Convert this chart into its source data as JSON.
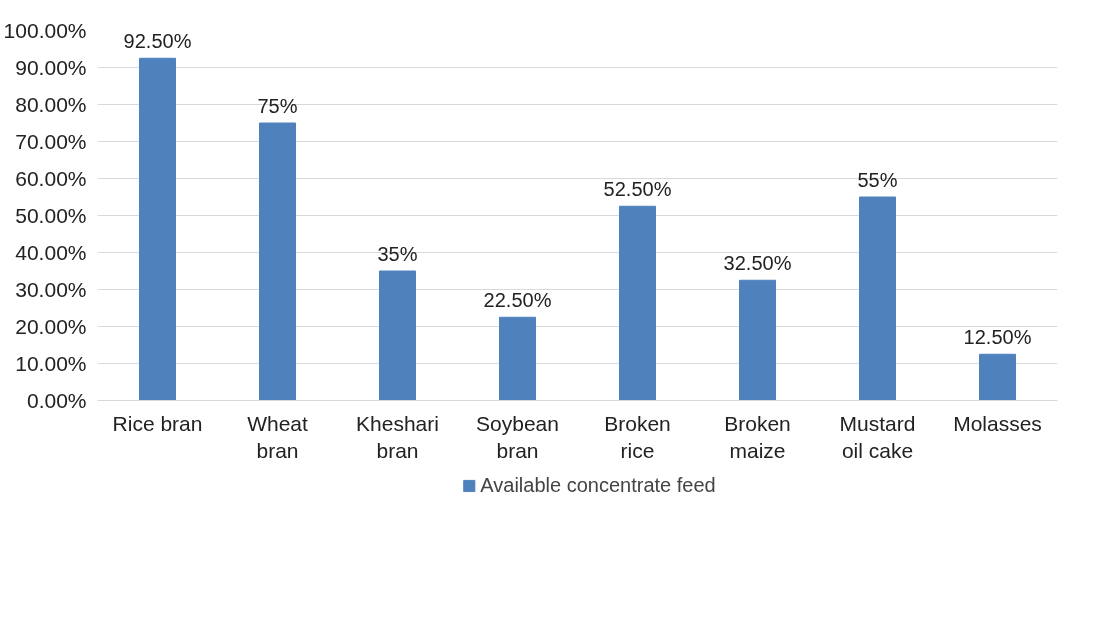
{
  "chart_data": {
    "type": "bar",
    "categories": [
      "Rice bran",
      "Wheat\nbran",
      "Kheshari\nbran",
      "Soybean\nbran",
      "Broken\nrice",
      "Broken\nmaize",
      "Mustard\noil cake",
      "Molasses"
    ],
    "series": [
      {
        "name": "Available concentrate feed",
        "color": "#4f81bd",
        "values": [
          92.5,
          75,
          35,
          22.5,
          52.5,
          32.5,
          55,
          12.5
        ],
        "value_labels": [
          "92.50%",
          "75%",
          "35%",
          "22.50%",
          "52.50%",
          "32.50%",
          "55%",
          "12.50%"
        ]
      }
    ],
    "ylim": [
      0,
      100
    ],
    "yticks": [
      {
        "value": 0,
        "label": "0.00%"
      },
      {
        "value": 10,
        "label": "10.00%"
      },
      {
        "value": 20,
        "label": "20.00%"
      },
      {
        "value": 30,
        "label": "30.00%"
      },
      {
        "value": 40,
        "label": "40.00%"
      },
      {
        "value": 50,
        "label": "50.00%"
      },
      {
        "value": 60,
        "label": "60.00%"
      },
      {
        "value": 70,
        "label": "70.00%"
      },
      {
        "value": 80,
        "label": "80.00%"
      },
      {
        "value": 90,
        "label": "90.00%"
      },
      {
        "value": 100,
        "label": "100.00%"
      }
    ],
    "grid": "y",
    "legend": "bottom"
  }
}
